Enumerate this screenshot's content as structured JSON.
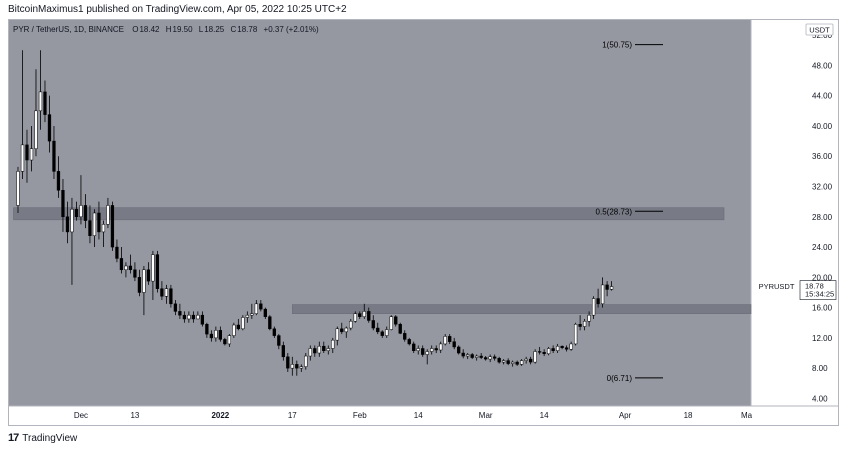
{
  "header": {
    "publisher_line": "BitcoinMaximus1 published on TradingView.com, Apr 05, 2022 10:25 UTC+2"
  },
  "legend": {
    "symbol": "PYR / TetherUS, 1D, BINANCE",
    "o_label": "O",
    "o_value": "18.42",
    "h_label": "H",
    "h_value": "19.50",
    "l_label": "L",
    "l_value": "18.25",
    "c_label": "C",
    "c_value": "18.78",
    "change": "+0.37 (+2.01%)"
  },
  "currency_label": "USDT",
  "price_tag": {
    "symbol": "PYRUSDT",
    "price": "18.78",
    "countdown": "15:34:25"
  },
  "footer": {
    "brand": "TradingView"
  },
  "colors": {
    "plot_bg": "#9598a1",
    "zone_fill": "#787b86",
    "candle_up": "#ffffff",
    "candle_down": "#000000",
    "price_tag_bg": "#ffffff"
  },
  "chart_data": {
    "type": "candlestick",
    "y_ticks": [
      "52.00",
      "48.00",
      "44.00",
      "40.00",
      "36.00",
      "32.00",
      "28.00",
      "24.00",
      "20.00",
      "16.00",
      "12.00",
      "8.00",
      "4.00"
    ],
    "y_tick_values": [
      52,
      48,
      44,
      40,
      36,
      32,
      28,
      24,
      20,
      16,
      12,
      8,
      4
    ],
    "ylim": [
      3,
      54
    ],
    "x_ticks": [
      "Dec",
      "13",
      "2022",
      "17",
      "Feb",
      "14",
      "Mar",
      "14",
      "Apr",
      "18",
      "Ma"
    ],
    "x_tick_days": [
      14,
      26,
      45,
      61,
      76,
      89,
      104,
      117,
      135,
      149,
      162
    ],
    "xlim": [
      -2,
      163
    ],
    "fib_levels": [
      {
        "label": "1(50.75)",
        "value": 50.75
      },
      {
        "label": "0.5(28.73)",
        "value": 28.73
      },
      {
        "label": "0(6.71)",
        "value": 6.71
      }
    ],
    "zones": [
      {
        "low": 27.6,
        "high": 29.2,
        "from_day": -1,
        "to_day": 157
      },
      {
        "low": 15.2,
        "high": 16.4,
        "from_day": 61,
        "to_day": 163
      }
    ],
    "candles": [
      [
        0,
        29.5,
        34.6,
        28.5,
        34.0
      ],
      [
        1,
        34.0,
        50.0,
        33.0,
        37.5
      ],
      [
        2,
        37.5,
        39.5,
        32.5,
        35.5
      ],
      [
        3,
        35.5,
        40.0,
        34.0,
        37.0
      ],
      [
        4,
        37.0,
        47.5,
        36.0,
        42.0
      ],
      [
        5,
        42.0,
        50.0,
        39.5,
        44.5
      ],
      [
        6,
        44.5,
        46.0,
        40.5,
        41.5
      ],
      [
        7,
        41.5,
        44.0,
        36.5,
        38.0
      ],
      [
        8,
        38.0,
        40.0,
        33.0,
        34.0
      ],
      [
        9,
        34.0,
        36.0,
        30.5,
        31.5
      ],
      [
        10,
        31.5,
        33.0,
        26.0,
        28.0
      ],
      [
        11,
        28.0,
        30.0,
        24.5,
        26.0
      ],
      [
        12,
        26.0,
        30.5,
        19.0,
        29.0
      ],
      [
        13,
        29.0,
        30.0,
        27.5,
        28.0
      ],
      [
        14,
        28.0,
        33.5,
        27.0,
        29.5
      ],
      [
        15,
        29.5,
        31.0,
        26.5,
        27.5
      ],
      [
        16,
        27.5,
        29.5,
        24.5,
        25.5
      ],
      [
        17,
        25.5,
        29.0,
        24.0,
        28.5
      ],
      [
        18,
        28.5,
        30.0,
        25.0,
        26.0
      ],
      [
        19,
        26.0,
        27.5,
        24.0,
        27.0
      ],
      [
        20,
        27.0,
        30.5,
        26.5,
        29.5
      ],
      [
        21,
        29.5,
        30.0,
        23.5,
        24.0
      ],
      [
        22,
        24.0,
        25.0,
        22.0,
        22.5
      ],
      [
        23,
        22.5,
        24.0,
        20.5,
        21.0
      ],
      [
        24,
        21.0,
        22.0,
        20.0,
        21.5
      ],
      [
        25,
        21.5,
        23.0,
        20.5,
        21.0
      ],
      [
        26,
        21.0,
        22.0,
        19.5,
        20.0
      ],
      [
        27,
        20.0,
        21.0,
        17.5,
        18.0
      ],
      [
        28,
        18.0,
        21.5,
        15.0,
        21.0
      ],
      [
        29,
        21.0,
        22.0,
        19.0,
        19.5
      ],
      [
        30,
        19.5,
        23.5,
        17.0,
        23.0
      ],
      [
        31,
        23.0,
        23.5,
        18.0,
        18.5
      ],
      [
        32,
        18.5,
        19.5,
        17.0,
        17.5
      ],
      [
        33,
        17.5,
        19.0,
        16.5,
        18.5
      ],
      [
        34,
        18.5,
        19.0,
        16.0,
        16.5
      ],
      [
        35,
        16.5,
        17.0,
        15.0,
        15.5
      ],
      [
        36,
        15.5,
        16.5,
        14.5,
        15.0
      ],
      [
        37,
        15.0,
        15.5,
        14.0,
        14.5
      ],
      [
        38,
        14.5,
        15.5,
        14.0,
        15.0
      ],
      [
        39,
        15.0,
        15.5,
        14.0,
        14.5
      ],
      [
        40,
        14.5,
        15.5,
        14.5,
        15.0
      ],
      [
        41,
        15.0,
        15.5,
        13.5,
        13.8
      ],
      [
        42,
        13.8,
        14.0,
        12.0,
        12.5
      ],
      [
        43,
        12.5,
        13.0,
        11.5,
        12.0
      ],
      [
        44,
        12.0,
        13.5,
        11.5,
        13.0
      ],
      [
        45,
        13.0,
        13.5,
        11.5,
        11.8
      ],
      [
        46,
        11.8,
        12.0,
        11.0,
        11.2
      ],
      [
        47,
        11.2,
        12.5,
        10.8,
        12.3
      ],
      [
        48,
        12.3,
        14.0,
        12.0,
        13.7
      ],
      [
        49,
        13.7,
        14.5,
        13.0,
        13.2
      ],
      [
        50,
        13.2,
        15.0,
        13.0,
        14.7
      ],
      [
        51,
        14.7,
        15.5,
        14.0,
        15.0
      ],
      [
        52,
        15.0,
        16.5,
        14.5,
        15.2
      ],
      [
        53,
        15.2,
        17.0,
        15.0,
        16.5
      ],
      [
        54,
        16.5,
        17.0,
        15.5,
        15.8
      ],
      [
        55,
        15.8,
        16.0,
        14.5,
        14.8
      ],
      [
        56,
        14.8,
        15.0,
        13.0,
        13.2
      ],
      [
        57,
        13.2,
        13.5,
        12.0,
        12.3
      ],
      [
        58,
        12.3,
        12.5,
        10.5,
        11.0
      ],
      [
        59,
        11.0,
        11.5,
        9.0,
        9.5
      ],
      [
        60,
        9.5,
        10.0,
        7.5,
        8.0
      ],
      [
        61,
        8.0,
        9.5,
        7.0,
        8.5
      ],
      [
        62,
        8.5,
        9.0,
        7.0,
        8.0
      ],
      [
        63,
        8.0,
        8.5,
        7.5,
        8.2
      ],
      [
        64,
        8.2,
        10.0,
        7.8,
        9.6
      ],
      [
        65,
        9.6,
        11.0,
        9.0,
        10.6
      ],
      [
        66,
        10.6,
        11.0,
        9.5,
        10.0
      ],
      [
        67,
        10.0,
        11.5,
        9.5,
        10.9
      ],
      [
        68,
        10.9,
        11.5,
        10.0,
        10.3
      ],
      [
        69,
        10.3,
        11.0,
        9.8,
        10.6
      ],
      [
        70,
        10.6,
        12.0,
        10.0,
        11.7
      ],
      [
        71,
        11.7,
        13.5,
        11.0,
        13.2
      ],
      [
        72,
        13.2,
        14.0,
        12.5,
        12.8
      ],
      [
        73,
        12.8,
        13.5,
        12.0,
        13.3
      ],
      [
        74,
        13.3,
        14.5,
        13.0,
        14.2
      ],
      [
        75,
        14.2,
        15.5,
        14.0,
        15.2
      ],
      [
        76,
        15.2,
        15.5,
        14.5,
        14.8
      ],
      [
        77,
        14.8,
        16.5,
        14.5,
        15.5
      ],
      [
        78,
        15.5,
        16.0,
        14.0,
        14.3
      ],
      [
        79,
        14.3,
        15.0,
        13.0,
        13.3
      ],
      [
        80,
        13.3,
        14.0,
        12.5,
        12.8
      ],
      [
        81,
        12.8,
        13.0,
        12.0,
        12.3
      ],
      [
        82,
        12.3,
        13.5,
        12.0,
        13.1
      ],
      [
        83,
        13.1,
        15.0,
        13.0,
        14.8
      ],
      [
        84,
        14.8,
        15.0,
        13.5,
        13.8
      ],
      [
        85,
        13.8,
        14.0,
        12.5,
        12.6
      ],
      [
        86,
        12.6,
        13.0,
        11.5,
        11.8
      ],
      [
        87,
        11.8,
        12.0,
        11.0,
        11.2
      ],
      [
        88,
        11.2,
        11.5,
        10.0,
        10.3
      ],
      [
        89,
        10.3,
        11.0,
        9.8,
        10.6
      ],
      [
        90,
        10.6,
        11.0,
        9.5,
        9.8
      ],
      [
        91,
        9.8,
        10.5,
        8.5,
        10.2
      ],
      [
        92,
        10.2,
        11.0,
        9.8,
        10.6
      ],
      [
        93,
        10.6,
        11.0,
        10.0,
        10.4
      ],
      [
        94,
        10.4,
        11.5,
        10.0,
        11.2
      ],
      [
        95,
        11.2,
        12.5,
        11.0,
        12.2
      ],
      [
        96,
        12.2,
        12.5,
        11.2,
        11.5
      ],
      [
        97,
        11.5,
        12.0,
        10.5,
        10.8
      ],
      [
        98,
        10.8,
        11.0,
        9.8,
        10.0
      ],
      [
        99,
        10.0,
        10.5,
        9.3,
        9.6
      ],
      [
        100,
        9.6,
        10.0,
        9.2,
        9.8
      ],
      [
        101,
        9.8,
        10.0,
        9.2,
        9.4
      ],
      [
        102,
        9.4,
        9.8,
        9.0,
        9.6
      ],
      [
        103,
        9.6,
        10.0,
        9.2,
        9.4
      ],
      [
        104,
        9.4,
        9.6,
        9.0,
        9.2
      ],
      [
        105,
        9.2,
        9.8,
        8.8,
        9.5
      ],
      [
        106,
        9.5,
        9.8,
        9.0,
        9.3
      ],
      [
        107,
        9.3,
        9.5,
        8.6,
        8.8
      ],
      [
        108,
        8.8,
        9.2,
        8.5,
        9.0
      ],
      [
        109,
        9.0,
        9.3,
        8.4,
        8.6
      ],
      [
        110,
        8.6,
        9.0,
        8.2,
        8.8
      ],
      [
        111,
        8.8,
        9.0,
        8.3,
        8.5
      ],
      [
        112,
        8.5,
        9.2,
        8.3,
        9.0
      ],
      [
        113,
        9.0,
        9.5,
        8.6,
        9.2
      ],
      [
        114,
        9.2,
        9.5,
        8.5,
        8.8
      ],
      [
        115,
        8.8,
        10.5,
        8.6,
        10.2
      ],
      [
        116,
        10.2,
        10.8,
        9.8,
        10.1
      ],
      [
        117,
        10.1,
        10.5,
        9.6,
        9.9
      ],
      [
        118,
        9.9,
        10.8,
        9.7,
        10.6
      ],
      [
        119,
        10.6,
        11.0,
        10.0,
        10.3
      ],
      [
        120,
        10.3,
        11.2,
        10.0,
        10.9
      ],
      [
        121,
        10.9,
        11.0,
        10.5,
        10.7
      ],
      [
        122,
        10.7,
        11.0,
        10.2,
        10.5
      ],
      [
        123,
        10.5,
        11.5,
        10.3,
        11.2
      ],
      [
        124,
        11.2,
        14.0,
        11.0,
        13.8
      ],
      [
        125,
        13.8,
        15.0,
        13.0,
        13.5
      ],
      [
        126,
        13.5,
        14.5,
        13.0,
        14.2
      ],
      [
        127,
        14.2,
        15.5,
        13.5,
        15.0
      ],
      [
        128,
        15.0,
        17.5,
        14.5,
        17.2
      ],
      [
        129,
        17.2,
        18.5,
        16.0,
        16.5
      ],
      [
        130,
        16.5,
        20.0,
        16.0,
        19.0
      ],
      [
        131,
        19.0,
        19.5,
        17.5,
        18.4
      ],
      [
        132,
        18.42,
        19.5,
        18.25,
        18.78
      ]
    ]
  }
}
